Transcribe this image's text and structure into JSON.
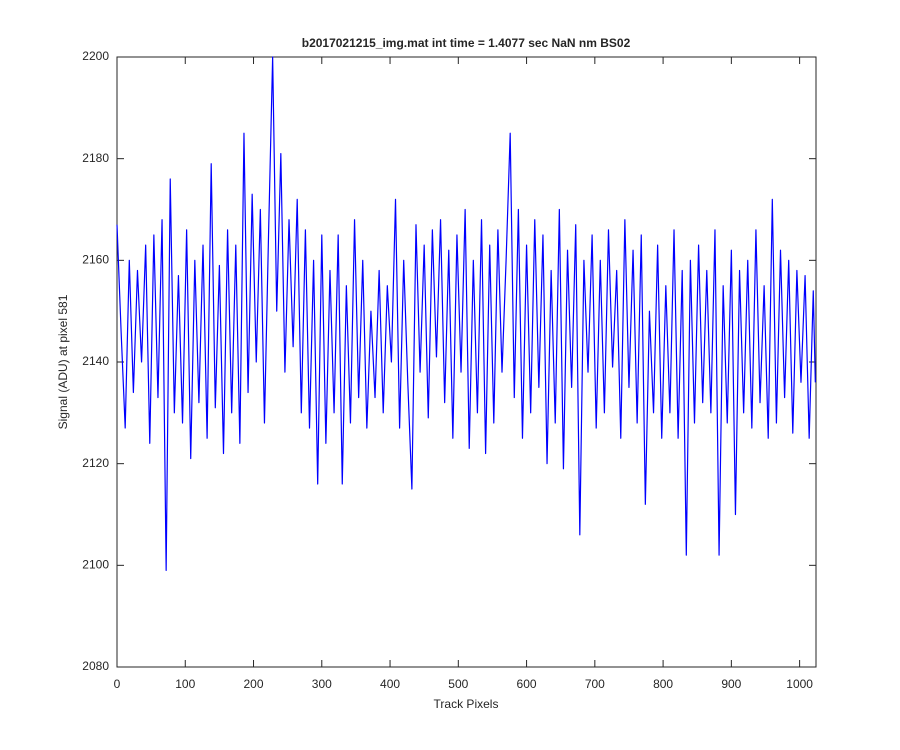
{
  "chart_data": {
    "type": "line",
    "title": "b2017021215_img.mat int time = 1.4077 sec  NaN nm BS02",
    "x_label": "Track Pixels",
    "y_label": "Signal (ADU) at pixel 581",
    "color": "#0000ff",
    "xlim": [
      0,
      1024
    ],
    "xticks": [
      0,
      100,
      200,
      300,
      400,
      500,
      600,
      700,
      800,
      900,
      1000
    ],
    "ylim": [
      2080,
      2200
    ],
    "yticks": [
      2080,
      2100,
      2120,
      2140,
      2160,
      2180,
      2200
    ],
    "grid": false,
    "x": [
      0,
      6,
      12,
      18,
      24,
      30,
      36,
      42,
      48,
      54,
      60,
      66,
      72,
      78,
      84,
      90,
      96,
      102,
      108,
      114,
      120,
      126,
      132,
      138,
      144,
      150,
      156,
      162,
      168,
      174,
      180,
      186,
      192,
      198,
      204,
      210,
      216,
      222,
      228,
      234,
      240,
      246,
      252,
      258,
      264,
      270,
      276,
      282,
      288,
      294,
      300,
      306,
      312,
      318,
      324,
      330,
      336,
      342,
      348,
      354,
      360,
      366,
      372,
      378,
      384,
      390,
      396,
      402,
      408,
      414,
      420,
      426,
      432,
      438,
      444,
      450,
      456,
      462,
      468,
      474,
      480,
      486,
      492,
      498,
      504,
      510,
      516,
      522,
      528,
      534,
      540,
      546,
      552,
      558,
      564,
      570,
      576,
      582,
      588,
      594,
      600,
      606,
      612,
      618,
      624,
      630,
      636,
      642,
      648,
      654,
      660,
      666,
      672,
      678,
      684,
      690,
      696,
      702,
      708,
      714,
      720,
      726,
      732,
      738,
      744,
      750,
      756,
      762,
      768,
      774,
      780,
      786,
      792,
      798,
      804,
      810,
      816,
      822,
      828,
      834,
      840,
      846,
      852,
      858,
      864,
      870,
      876,
      882,
      888,
      894,
      900,
      906,
      912,
      918,
      924,
      930,
      936,
      942,
      948,
      954,
      960,
      966,
      972,
      978,
      984,
      990,
      996,
      1002,
      1008,
      1014,
      1020,
      1023
    ],
    "values": [
      2167,
      2146,
      2127,
      2160,
      2134,
      2158,
      2140,
      2163,
      2124,
      2165,
      2133,
      2168,
      2099,
      2176,
      2130,
      2157,
      2128,
      2166,
      2121,
      2160,
      2132,
      2163,
      2125,
      2179,
      2131,
      2159,
      2122,
      2166,
      2130,
      2163,
      2124,
      2185,
      2134,
      2173,
      2140,
      2170,
      2128,
      2165,
      2200,
      2150,
      2181,
      2138,
      2168,
      2143,
      2172,
      2130,
      2166,
      2127,
      2160,
      2116,
      2165,
      2124,
      2158,
      2130,
      2165,
      2116,
      2155,
      2128,
      2168,
      2133,
      2160,
      2127,
      2150,
      2133,
      2158,
      2130,
      2155,
      2140,
      2172,
      2127,
      2160,
      2136,
      2115,
      2167,
      2138,
      2163,
      2129,
      2166,
      2141,
      2168,
      2132,
      2162,
      2125,
      2165,
      2138,
      2170,
      2123,
      2160,
      2130,
      2168,
      2122,
      2163,
      2128,
      2166,
      2138,
      2160,
      2185,
      2133,
      2170,
      2125,
      2163,
      2130,
      2168,
      2135,
      2165,
      2120,
      2158,
      2128,
      2170,
      2119,
      2162,
      2135,
      2167,
      2106,
      2160,
      2138,
      2165,
      2127,
      2160,
      2130,
      2166,
      2139,
      2158,
      2125,
      2168,
      2135,
      2162,
      2128,
      2165,
      2112,
      2150,
      2130,
      2163,
      2125,
      2155,
      2130,
      2166,
      2125,
      2158,
      2102,
      2160,
      2128,
      2163,
      2132,
      2158,
      2130,
      2166,
      2102,
      2155,
      2128,
      2162,
      2110,
      2158,
      2130,
      2160,
      2127,
      2166,
      2132,
      2155,
      2125,
      2172,
      2128,
      2162,
      2133,
      2160,
      2126,
      2158,
      2136,
      2157,
      2125,
      2154,
      2136
    ]
  }
}
